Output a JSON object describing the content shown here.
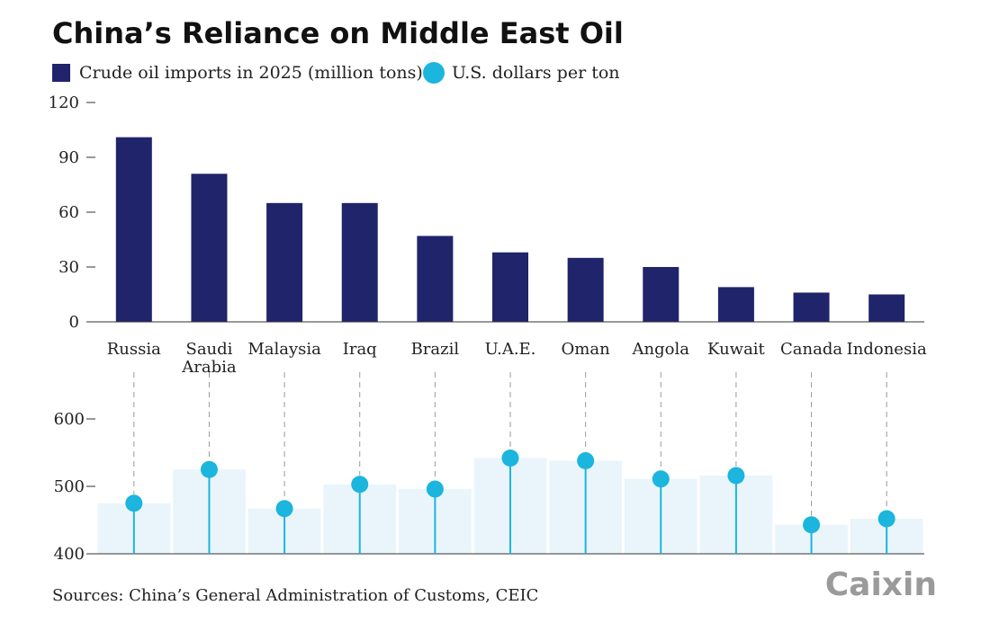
{
  "chart_data": {
    "type": "bar",
    "title": "China’s Reliance on Middle East Oil",
    "categories": [
      [
        "Russia"
      ],
      [
        "Saudi",
        "Arabia"
      ],
      [
        "Malaysia"
      ],
      [
        "Iraq"
      ],
      [
        "Brazil"
      ],
      [
        "U.A.E."
      ],
      [
        "Oman"
      ],
      [
        "Angola"
      ],
      [
        "Kuwait"
      ],
      [
        "Canada"
      ],
      [
        "Indonesia"
      ]
    ],
    "series": [
      {
        "name": "Crude oil imports in 2025 (million tons)",
        "type": "bar",
        "color": "#1f246b",
        "values": [
          101,
          81,
          65,
          65,
          47,
          38,
          35,
          30,
          19,
          16,
          15
        ]
      },
      {
        "name": "U.S. dollars per ton",
        "type": "lollipop",
        "color": "#1bb5dd",
        "values": [
          475,
          525,
          467,
          503,
          496,
          542,
          538,
          511,
          516,
          443,
          452
        ]
      }
    ],
    "top_panel": {
      "ylim": [
        0,
        120
      ],
      "yticks": [
        0,
        30,
        60,
        90,
        120
      ]
    },
    "bottom_panel": {
      "ylim": [
        400,
        600
      ],
      "yticks": [
        400,
        500,
        600
      ]
    },
    "background_bar_color": "#e9f5fb",
    "source": "Sources: China’s General Administration of Customs, CEIC",
    "logo": "Caixin"
  }
}
